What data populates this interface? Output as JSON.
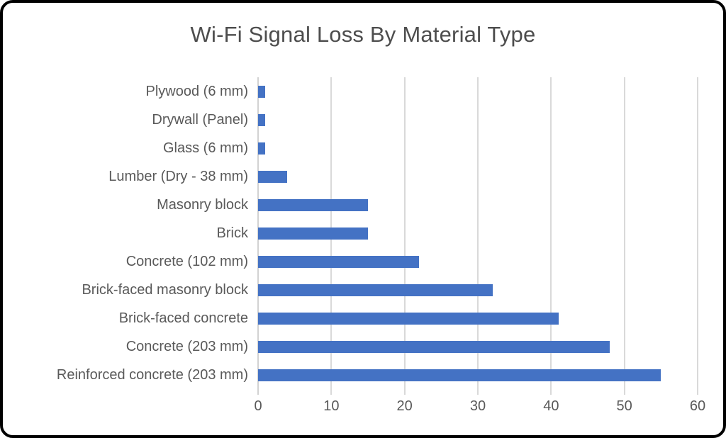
{
  "frame": {
    "background": "#ffffff",
    "border_color": "#000000"
  },
  "chart_data": {
    "type": "bar",
    "orientation": "horizontal",
    "title": "Wi-Fi Signal Loss By Material Type",
    "categories": [
      "Plywood (6 mm)",
      "Drywall (Panel)",
      "Glass (6 mm)",
      "Lumber (Dry - 38 mm)",
      "Masonry block",
      "Brick",
      "Concrete (102 mm)",
      "Brick-faced masonry block",
      "Brick-faced concrete",
      "Concrete (203 mm)",
      "Reinforced concrete (203 mm)"
    ],
    "values": [
      1,
      1,
      1,
      4,
      15,
      15,
      22,
      32,
      41,
      48,
      55
    ],
    "xlim": [
      0,
      60
    ],
    "xticks": [
      0,
      10,
      20,
      30,
      40,
      50,
      60
    ],
    "xlabel": "",
    "ylabel": "",
    "grid": true,
    "legend": false,
    "colors": {
      "bar": "#4472C4",
      "gridline": "#D9D9D9",
      "axis_line": "#D2D2D2",
      "tick_label": "#595959",
      "category_label": "#595959",
      "title": "#4D4D4D"
    }
  }
}
